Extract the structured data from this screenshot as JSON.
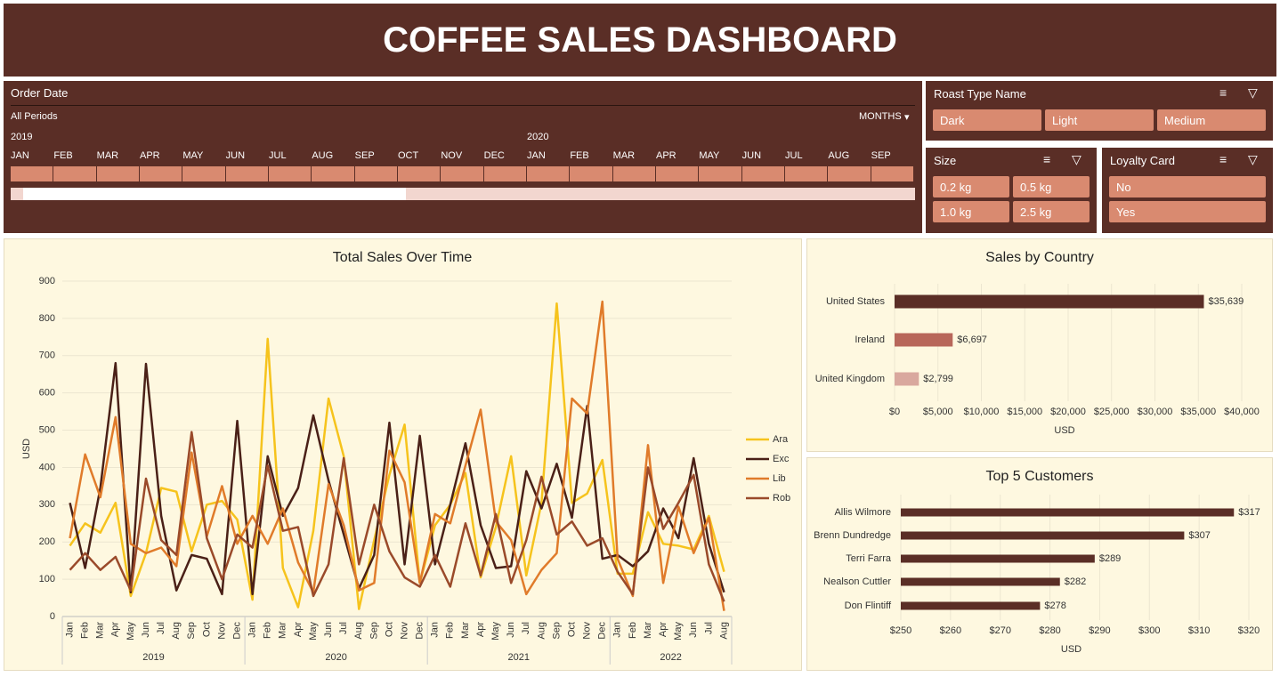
{
  "header": {
    "title": "COFFEE SALES DASHBOARD"
  },
  "timeline": {
    "title": "Order Date",
    "period": "All Periods",
    "unit": "MONTHS",
    "years": [
      "2019",
      "2020"
    ],
    "months": [
      "JAN",
      "FEB",
      "MAR",
      "APR",
      "MAY",
      "JUN",
      "JUL",
      "AUG",
      "SEP",
      "OCT",
      "NOV",
      "DEC",
      "JAN",
      "FEB",
      "MAR",
      "APR",
      "MAY",
      "JUN",
      "JUL",
      "AUG",
      "SEP"
    ]
  },
  "slicers": [
    {
      "title": "Roast Type Name",
      "items": [
        "Dark",
        "Light",
        "Medium"
      ]
    },
    {
      "title": "Size",
      "items": [
        "0.2 kg",
        "0.5 kg",
        "1.0 kg",
        "2.5 kg"
      ]
    },
    {
      "title": "Loyalty Card",
      "items": [
        "No",
        "Yes"
      ]
    }
  ],
  "chart_data": [
    {
      "type": "line",
      "title": "Total Sales Over Time",
      "ylabel": "USD",
      "categories": [
        "Jan",
        "Feb",
        "Mar",
        "Apr",
        "May",
        "Jun",
        "Jul",
        "Aug",
        "Sep",
        "Oct",
        "Nov",
        "Dec",
        "Jan",
        "Feb",
        "Mar",
        "Apr",
        "May",
        "Jun",
        "Jul",
        "Aug",
        "Sep",
        "Oct",
        "Nov",
        "Dec",
        "Jan",
        "Feb",
        "Mar",
        "Apr",
        "May",
        "Jun",
        "Jul",
        "Aug",
        "Sep",
        "Oct",
        "Nov",
        "Dec",
        "Jan",
        "Feb",
        "Mar",
        "Apr",
        "May",
        "Jun",
        "Jul",
        "Aug"
      ],
      "years": [
        "2019",
        "2020",
        "2021",
        "2022"
      ],
      "ylim": [
        0,
        900
      ],
      "yticks": [
        0,
        100,
        200,
        300,
        400,
        500,
        600,
        700,
        800,
        900
      ],
      "grid": true,
      "legend": "right",
      "series": [
        {
          "name": "Ara",
          "color": "#f6c31c",
          "values": [
            190,
            250,
            225,
            305,
            55,
            170,
            345,
            335,
            175,
            300,
            310,
            260,
            45,
            745,
            130,
            25,
            230,
            585,
            430,
            20,
            205,
            380,
            515,
            90,
            245,
            300,
            385,
            105,
            240,
            430,
            110,
            305,
            840,
            305,
            330,
            420,
            115,
            115,
            280,
            195,
            190,
            180,
            270,
            120
          ]
        },
        {
          "name": "Exc",
          "color": "#4a2017",
          "values": [
            305,
            130,
            345,
            680,
            65,
            678,
            270,
            70,
            165,
            155,
            60,
            525,
            60,
            430,
            270,
            345,
            540,
            365,
            220,
            75,
            165,
            520,
            140,
            485,
            140,
            300,
            465,
            245,
            130,
            135,
            390,
            290,
            410,
            265,
            565,
            155,
            165,
            135,
            175,
            290,
            210,
            425,
            195,
            65
          ]
        },
        {
          "name": "Lib",
          "color": "#e07b2a",
          "values": [
            210,
            435,
            320,
            535,
            195,
            170,
            185,
            135,
            440,
            215,
            350,
            195,
            270,
            195,
            290,
            145,
            65,
            355,
            245,
            70,
            90,
            445,
            360,
            90,
            275,
            250,
            405,
            555,
            255,
            205,
            60,
            125,
            170,
            585,
            545,
            845,
            155,
            55,
            460,
            90,
            295,
            170,
            265,
            15
          ]
        },
        {
          "name": "Rob",
          "color": "#9a4a2a",
          "values": [
            125,
            170,
            125,
            160,
            70,
            370,
            205,
            165,
            495,
            210,
            100,
            220,
            185,
            405,
            230,
            240,
            55,
            140,
            425,
            140,
            300,
            175,
            105,
            80,
            165,
            80,
            250,
            110,
            275,
            90,
            205,
            375,
            220,
            255,
            190,
            210,
            120,
            60,
            400,
            235,
            305,
            380,
            140,
            40
          ]
        }
      ]
    },
    {
      "type": "hbar",
      "title": "Sales by Country",
      "xlabel": "USD",
      "categories": [
        "United States",
        "Ireland",
        "United Kingdom"
      ],
      "values": [
        35639,
        6697,
        2799
      ],
      "value_labels": [
        "$35,639",
        "$6,697",
        "$2,799"
      ],
      "colors": [
        "#5a2e26",
        "#b8675a",
        "#d9a89e"
      ],
      "xlim": [
        0,
        40000
      ],
      "xticks": [
        {
          "value": 0,
          "label": "$0"
        },
        {
          "value": 5000,
          "label": "$5,000"
        },
        {
          "value": 10000,
          "label": "$10,000"
        },
        {
          "value": 15000,
          "label": "$15,000"
        },
        {
          "value": 20000,
          "label": "$20,000"
        },
        {
          "value": 25000,
          "label": "$25,000"
        },
        {
          "value": 30000,
          "label": "$30,000"
        },
        {
          "value": 35000,
          "label": "$35,000"
        },
        {
          "value": 40000,
          "label": "$40,000"
        }
      ],
      "grid": true
    },
    {
      "type": "hbar",
      "title": "Top 5 Customers",
      "xlabel": "USD",
      "categories": [
        "Allis Wilmore",
        "Brenn Dundredge",
        "Terri Farra",
        "Nealson Cuttler",
        "Don Flintiff"
      ],
      "values": [
        317,
        307,
        289,
        282,
        278
      ],
      "value_labels": [
        "$317",
        "$307",
        "$289",
        "$282",
        "$278"
      ],
      "color": "#5a2e26",
      "xlim": [
        250,
        320
      ],
      "xticks": [
        {
          "value": 250,
          "label": "$250"
        },
        {
          "value": 260,
          "label": "$260"
        },
        {
          "value": 270,
          "label": "$270"
        },
        {
          "value": 280,
          "label": "$280"
        },
        {
          "value": 290,
          "label": "$290"
        },
        {
          "value": 300,
          "label": "$300"
        },
        {
          "value": 310,
          "label": "$310"
        },
        {
          "value": 320,
          "label": "$320"
        }
      ],
      "grid": true
    }
  ]
}
